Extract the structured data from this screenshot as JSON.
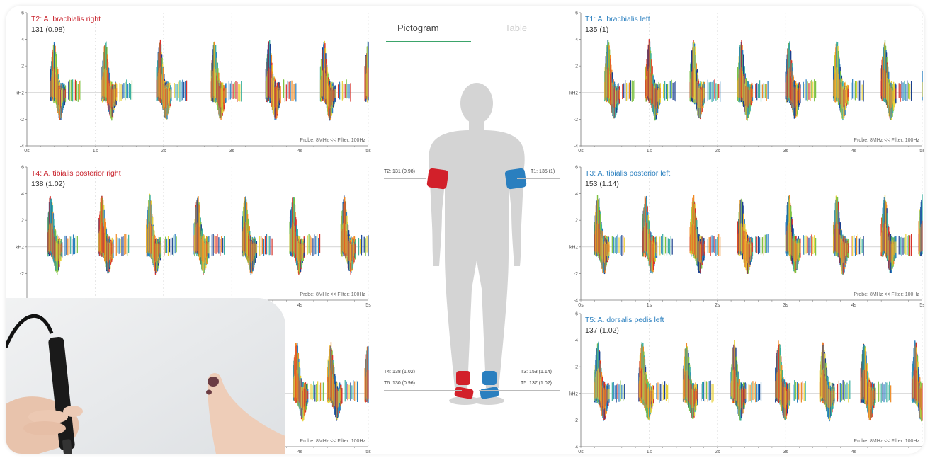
{
  "tabs": {
    "active": "Pictogram",
    "inactive": "Table"
  },
  "panels": {
    "t2": {
      "title": "T2: A. brachialis right",
      "value": "131 (0.98)",
      "footer": "Probe: 8MHz <<   Filter: 100Hz"
    },
    "t4": {
      "title": "T4: A. tibialis posterior right",
      "value": "138 (1.02)",
      "footer": "Probe: 8MHz <<   Filter: 100Hz"
    },
    "t6": {
      "footer": "Probe: 8MHz <<   Filter: 100Hz"
    },
    "t1": {
      "title": "T1: A. brachialis left",
      "value": "135 (1)",
      "footer": "Probe: 8MHz <<   Filter: 100Hz"
    },
    "t3": {
      "title": "T3: A. tibialis posterior left",
      "value": "153 (1.14)",
      "footer": "Probe: 8MHz <<   Filter: 100Hz"
    },
    "t5": {
      "title": "T5: A. dorsalis pedis left",
      "value": "137 (1.02)",
      "footer": "Probe: 8MHz <<   Filter: 100Hz"
    }
  },
  "axis": {
    "y": [
      "6",
      "4",
      "2",
      "kHz",
      "-2",
      "-4"
    ],
    "x": [
      "0s",
      "1s",
      "2s",
      "3s",
      "4s",
      "5s"
    ]
  },
  "markers": {
    "t2": "T2: 131 (0.98)",
    "t1": "T1: 135 (1)",
    "t4": "T4: 138 (1.02)",
    "t6": "T6: 130 (0.96)",
    "t3": "T3: 153 (1.14)",
    "t5": "T5: 137 (1.02)"
  },
  "colors": {
    "right": "#c8202a",
    "left": "#2a7fbf",
    "accent": "#3ba46a"
  }
}
